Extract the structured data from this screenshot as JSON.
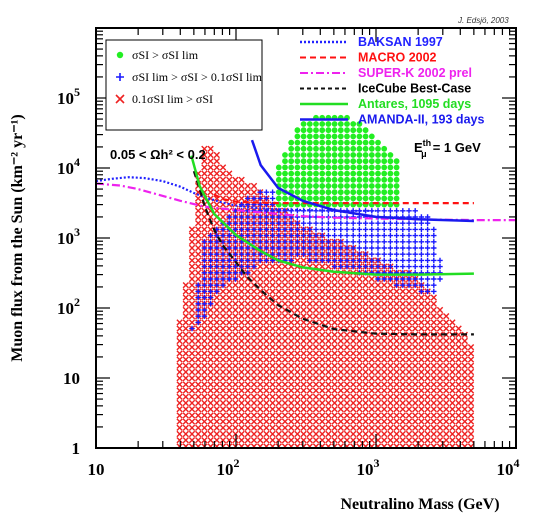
{
  "credit": "J. Edsjö, 2003",
  "chart_data": {
    "type": "scatter",
    "xlabel": "Neutralino Mass (GeV)",
    "ylabel": "Muon flux from the Sun (km⁻² yr⁻¹)",
    "x_scale": "log",
    "y_scale": "log",
    "xlim": [
      10,
      10000
    ],
    "ylim": [
      1,
      1000000
    ],
    "x_ticks": [
      {
        "value": 10,
        "base": "10",
        "exp": ""
      },
      {
        "value": 100,
        "base": "10",
        "exp": "2"
      },
      {
        "value": 1000,
        "base": "10",
        "exp": "3"
      },
      {
        "value": 10000,
        "base": "10",
        "exp": "4"
      }
    ],
    "y_ticks": [
      {
        "value": 1,
        "base": "1",
        "exp": ""
      },
      {
        "value": 10,
        "base": "10",
        "exp": ""
      },
      {
        "value": 100,
        "base": "10",
        "exp": "2"
      },
      {
        "value": 1000,
        "base": "10",
        "exp": "3"
      },
      {
        "value": 10000,
        "base": "10",
        "exp": "4"
      },
      {
        "value": 100000,
        "base": "10",
        "exp": "5"
      }
    ],
    "annotation": "0.05 < Ωh² < 0.2",
    "point_legend": [
      {
        "label": "σSI > σSI lim",
        "marker": "dot",
        "color": "#22ee22"
      },
      {
        "label": "σSI lim > σSI > 0.1σSI lim",
        "marker": "plus",
        "color": "#1a1aff"
      },
      {
        "label": "0.1σSI lim > σSI",
        "marker": "cross",
        "color": "#ee2222"
      }
    ],
    "line_legend": [
      {
        "label": "BAKSAN 1997",
        "color": "#2222ff",
        "dash": "2,2",
        "width": 2.5,
        "text_color": "#2222ff"
      },
      {
        "label": "MACRO 2002",
        "color": "#ff1111",
        "dash": "6,4",
        "width": 2,
        "text_color": "#ff1111"
      },
      {
        "label": "SUPER-K 2002 prel",
        "color": "#ee22ee",
        "dash": "8,3,2,3",
        "width": 2,
        "text_color": "#ee22ee"
      },
      {
        "label": "IceCube Best-Case",
        "color": "#111111",
        "dash": "4,3",
        "width": 2,
        "text_color": "#000000"
      },
      {
        "label": "Antares, 1095 days",
        "color": "#22dd22",
        "dash": "",
        "width": 2.5,
        "text_color": "#22dd22"
      },
      {
        "label": "AMANDA-II, 193 days",
        "color": "#1a1aee",
        "dash": "",
        "width": 2.5,
        "text_color": "#1a1aee"
      }
    ],
    "threshold_label": "E",
    "threshold_sup": "th",
    "threshold_sub": "μ",
    "threshold_value": "= 1 GeV",
    "series": [
      {
        "name": "BAKSAN 1997",
        "style": "dotted",
        "color": "#2222ff",
        "x": [
          10,
          13,
          17,
          22,
          30,
          40,
          50,
          60,
          80,
          100,
          150,
          200,
          300,
          500,
          800,
          1000
        ],
        "y": [
          6500,
          7000,
          7400,
          7200,
          6500,
          5400,
          4400,
          3800,
          3200,
          2900,
          2650,
          2550,
          2500,
          2450,
          2450,
          2450
        ]
      },
      {
        "name": "MACRO 2002",
        "style": "dashed",
        "color": "#ff1111",
        "x": [
          70,
          80,
          100,
          150,
          200,
          300,
          500,
          1000,
          2000,
          5000
        ],
        "y": [
          4200,
          3600,
          3300,
          3200,
          3150,
          3150,
          3150,
          3150,
          3150,
          3150
        ]
      },
      {
        "name": "SUPER-K 2002 prel",
        "style": "dashdot",
        "color": "#ee22ee",
        "x": [
          10,
          15,
          20,
          30,
          40,
          60,
          100,
          200,
          300,
          500,
          1000,
          2000,
          5000,
          10000
        ],
        "y": [
          6000,
          5600,
          5000,
          4000,
          3400,
          2800,
          2500,
          2200,
          2050,
          1950,
          1900,
          1850,
          1800,
          1800
        ]
      },
      {
        "name": "IceCube Best-Case",
        "style": "dashed",
        "color": "#111111",
        "x": [
          50,
          55,
          60,
          70,
          80,
          100,
          120,
          150,
          200,
          300,
          500,
          1000,
          2000,
          5000
        ],
        "y": [
          9000,
          5000,
          2800,
          1300,
          800,
          450,
          280,
          180,
          110,
          70,
          50,
          43,
          42,
          42
        ]
      },
      {
        "name": "Antares, 1095 days",
        "style": "solid",
        "color": "#22dd22",
        "x": [
          48,
          55,
          70,
          100,
          150,
          200,
          300,
          500,
          1000,
          2000,
          5000
        ],
        "y": [
          15000,
          5500,
          2200,
          1100,
          650,
          480,
          380,
          330,
          300,
          300,
          310
        ]
      },
      {
        "name": "AMANDA-II, 193 days",
        "style": "solid",
        "color": "#1a1aee",
        "x": [
          130,
          150,
          200,
          300,
          500,
          1000,
          2000,
          5000
        ],
        "y": [
          25000,
          11000,
          5200,
          3400,
          2500,
          2000,
          1850,
          1750
        ]
      }
    ],
    "regions": [
      {
        "name": "σSI > σSI lim",
        "marker": "dot",
        "color": "#22ee22",
        "outline": [
          [
            190,
            3000
          ],
          [
            200,
            10000
          ],
          [
            230,
            20000
          ],
          [
            280,
            40000
          ],
          [
            380,
            60000
          ],
          [
            600,
            60000
          ],
          [
            800,
            40000
          ],
          [
            1000,
            25000
          ],
          [
            1500,
            12000
          ],
          [
            1500,
            3000
          ]
        ]
      },
      {
        "name": "σSI lim > σSI > 0.1σSI lim",
        "marker": "plus",
        "color": "#1a1aff",
        "outline": [
          [
            48,
            50
          ],
          [
            60,
            1000
          ],
          [
            100,
            3000
          ],
          [
            150,
            5000
          ],
          [
            300,
            6000
          ],
          [
            800,
            5000
          ],
          [
            1500,
            3000
          ],
          [
            2500,
            2000
          ],
          [
            3000,
            300
          ],
          [
            2500,
            150
          ],
          [
            1500,
            200
          ],
          [
            800,
            300
          ],
          [
            300,
            500
          ],
          [
            150,
            400
          ],
          [
            80,
            200
          ],
          [
            50,
            40
          ]
        ]
      },
      {
        "name": "0.1σSI lim > σSI",
        "marker": "cross",
        "color": "#ee2222",
        "outline": [
          [
            38,
            1
          ],
          [
            38,
            40
          ],
          [
            45,
            300
          ],
          [
            50,
            3000
          ],
          [
            55,
            15000
          ],
          [
            60,
            20000
          ],
          [
            70,
            20000
          ],
          [
            80,
            12000
          ],
          [
            100,
            8000
          ],
          [
            150,
            5000
          ],
          [
            200,
            3000
          ],
          [
            300,
            1500
          ],
          [
            500,
            1000
          ],
          [
            1000,
            500
          ],
          [
            2000,
            300
          ],
          [
            3000,
            100
          ],
          [
            5000,
            30
          ],
          [
            5000,
            1
          ]
        ]
      }
    ]
  }
}
